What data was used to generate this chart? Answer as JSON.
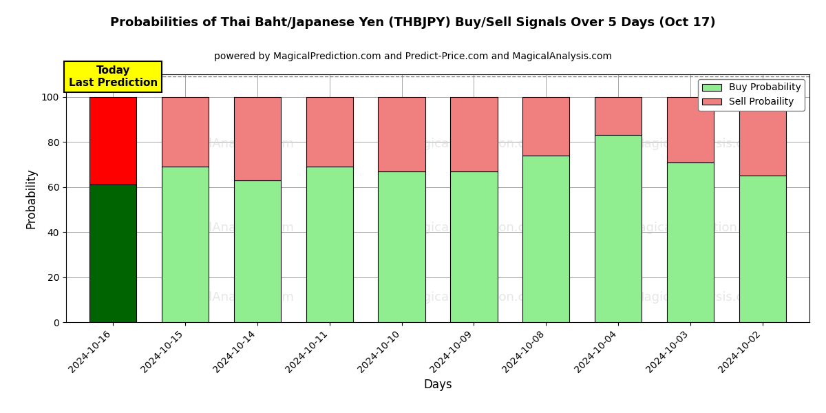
{
  "title": "Probabilities of Thai Baht/Japanese Yen (THBJPY) Buy/Sell Signals Over 5 Days (Oct 17)",
  "subtitle": "powered by MagicalPrediction.com and Predict-Price.com and MagicalAnalysis.com",
  "xlabel": "Days",
  "ylabel": "Probability",
  "categories": [
    "2024-10-16",
    "2024-10-15",
    "2024-10-14",
    "2024-10-11",
    "2024-10-10",
    "2024-10-09",
    "2024-10-08",
    "2024-10-04",
    "2024-10-03",
    "2024-10-02"
  ],
  "buy_values": [
    61,
    69,
    63,
    69,
    67,
    67,
    74,
    83,
    71,
    65
  ],
  "sell_values": [
    39,
    31,
    37,
    31,
    33,
    33,
    26,
    17,
    29,
    35
  ],
  "today_buy_color": "#006400",
  "today_sell_color": "#FF0000",
  "buy_color": "#90EE90",
  "sell_color": "#F08080",
  "today_annotation": "Today\nLast Prediction",
  "today_annotation_bg": "#FFFF00",
  "legend_buy_label": "Buy Probability",
  "legend_sell_label": "Sell Probaility",
  "ylim": [
    0,
    110
  ],
  "yticks": [
    0,
    20,
    40,
    60,
    80,
    100
  ],
  "dashed_line_y": 109,
  "watermarks": [
    "MagicalAnalysis.com",
    "MagicalPrediction.com",
    "MagicalAnalysis.com",
    "MagicalPrediction.com"
  ],
  "bar_width": 0.65,
  "fig_width": 12.0,
  "fig_height": 6.0,
  "dpi": 100
}
